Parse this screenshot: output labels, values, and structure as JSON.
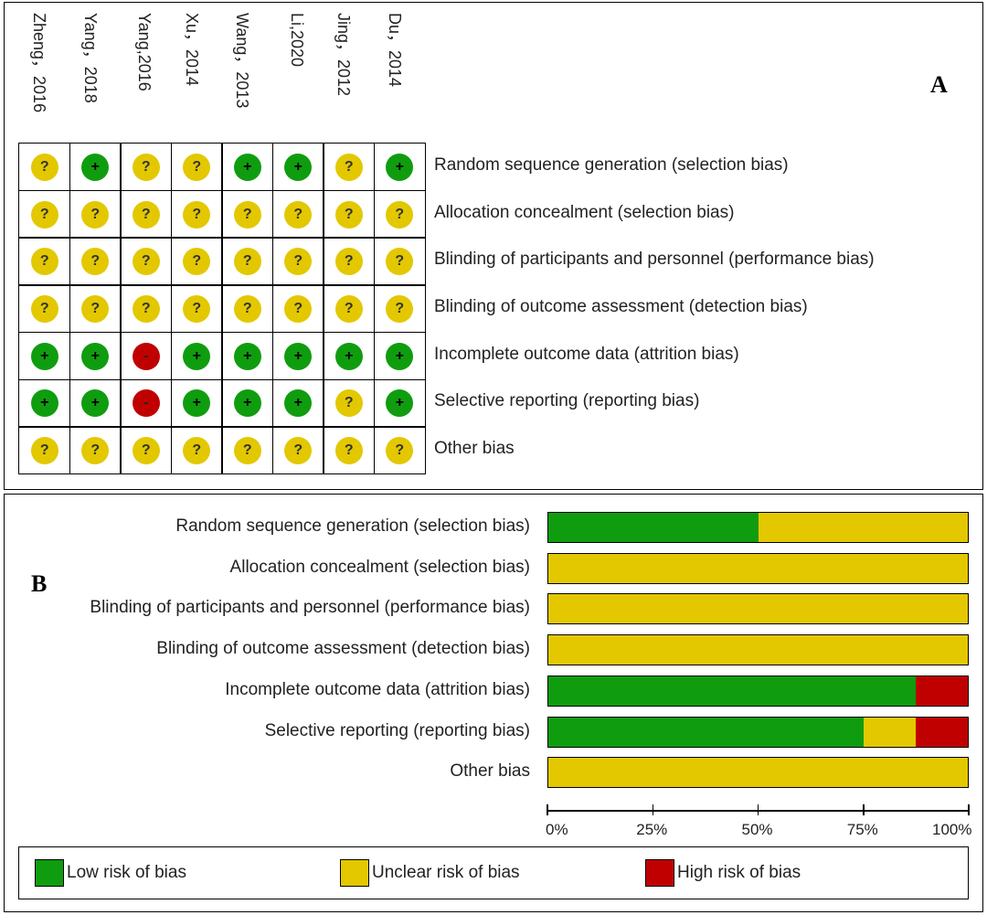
{
  "colors": {
    "low": "#0f9d0f",
    "unclear": "#e3c800",
    "high": "#c00000"
  },
  "symbols": {
    "low": "+",
    "unclear": "?",
    "high": "-"
  },
  "chart_data": [
    {
      "type": "table",
      "title": "A",
      "columns": [
        "Zheng，2016",
        "Yang，2018",
        "Yang,2016",
        "Xu，2014",
        "Wang，2013",
        "Li,2020",
        "Jing，2012",
        "Du，2014"
      ],
      "rows": [
        {
          "domain": "Random sequence generation (selection bias)",
          "judgements": [
            "unclear",
            "low",
            "unclear",
            "unclear",
            "low",
            "low",
            "unclear",
            "low"
          ]
        },
        {
          "domain": "Allocation concealment (selection bias)",
          "judgements": [
            "unclear",
            "unclear",
            "unclear",
            "unclear",
            "unclear",
            "unclear",
            "unclear",
            "unclear"
          ]
        },
        {
          "domain": "Blinding of participants and personnel (performance bias)",
          "judgements": [
            "unclear",
            "unclear",
            "unclear",
            "unclear",
            "unclear",
            "unclear",
            "unclear",
            "unclear"
          ]
        },
        {
          "domain": "Blinding of outcome assessment (detection bias)",
          "judgements": [
            "unclear",
            "unclear",
            "unclear",
            "unclear",
            "unclear",
            "unclear",
            "unclear",
            "unclear"
          ]
        },
        {
          "domain": "Incomplete outcome data (attrition bias)",
          "judgements": [
            "low",
            "low",
            "high",
            "low",
            "low",
            "low",
            "low",
            "low"
          ]
        },
        {
          "domain": "Selective reporting (reporting bias)",
          "judgements": [
            "low",
            "low",
            "high",
            "low",
            "low",
            "low",
            "unclear",
            "low"
          ]
        },
        {
          "domain": "Other bias",
          "judgements": [
            "unclear",
            "unclear",
            "unclear",
            "unclear",
            "unclear",
            "unclear",
            "unclear",
            "unclear"
          ]
        }
      ]
    },
    {
      "type": "bar",
      "title": "B",
      "orientation": "horizontal",
      "stacked": true,
      "categories": [
        "Random sequence generation (selection bias)",
        "Allocation concealment (selection bias)",
        "Blinding of participants and personnel (performance bias)",
        "Blinding of outcome assessment (detection bias)",
        "Incomplete outcome data (attrition bias)",
        "Selective reporting (reporting bias)",
        "Other bias"
      ],
      "series": [
        {
          "name": "Low risk of bias",
          "key": "low",
          "values": [
            50,
            0,
            0,
            0,
            87.5,
            75,
            0
          ]
        },
        {
          "name": "Unclear risk of bias",
          "key": "unclear",
          "values": [
            50,
            100,
            100,
            100,
            0,
            12.5,
            100
          ]
        },
        {
          "name": "High risk of bias",
          "key": "high",
          "values": [
            0,
            0,
            0,
            0,
            12.5,
            12.5,
            0
          ]
        }
      ],
      "xlim": [
        0,
        100
      ],
      "xticks": [
        "0%",
        "25%",
        "50%",
        "75%",
        "100%"
      ],
      "legend": [
        "Low risk of bias",
        "Unclear risk of bias",
        "High risk of bias"
      ],
      "legend_position": "bottom"
    }
  ]
}
